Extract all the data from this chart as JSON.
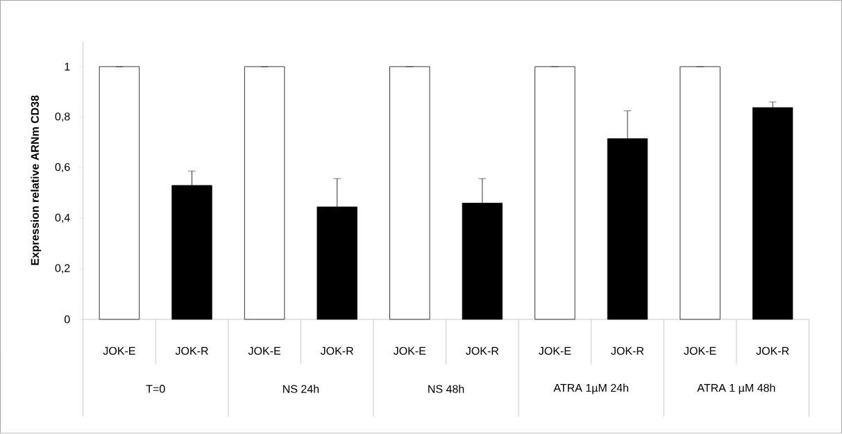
{
  "chart_data": {
    "type": "bar",
    "categories": [
      "JOK-E",
      "JOK-R",
      "JOK-E",
      "JOK-R",
      "JOK-E",
      "JOK-R",
      "JOK-E",
      "JOK-R",
      "JOK-E",
      "JOK-R"
    ],
    "values": [
      1,
      0.53,
      1,
      0.445,
      1,
      0.46,
      1,
      0.715,
      1,
      0.838
    ],
    "colors": [
      "#ffffff",
      "#000000",
      "#ffffff",
      "#000000",
      "#ffffff",
      "#000000",
      "#ffffff",
      "#000000",
      "#ffffff",
      "#000000"
    ],
    "errors": [
      [
        1,
        1
      ],
      [
        0.53,
        0.587
      ],
      [
        1,
        1
      ],
      [
        0.445,
        0.557
      ],
      [
        1,
        1
      ],
      [
        0.46,
        0.557
      ],
      [
        1,
        1
      ],
      [
        0.715,
        0.825
      ],
      [
        1,
        1
      ],
      [
        0.838,
        0.86
      ]
    ],
    "ylabel": "**Expression relative ARNm CD38**",
    "ylim": [
      0,
      1.1
    ],
    "yticks": [
      {
        "value": 0,
        "label": "0"
      },
      {
        "value": 0.2,
        "label": "0,2"
      },
      {
        "value": 0.4,
        "label": "0,4"
      },
      {
        "value": 0.6,
        "label": "0,6"
      },
      {
        "value": 0.8,
        "label": "0,8"
      },
      {
        "value": 1,
        "label": "1"
      }
    ],
    "annotations": [
      "T=0",
      "NS 24h",
      "NS 48h",
      "ATRA 1µM 24h",
      "ATRA 1 µM 48h"
    ]
  }
}
